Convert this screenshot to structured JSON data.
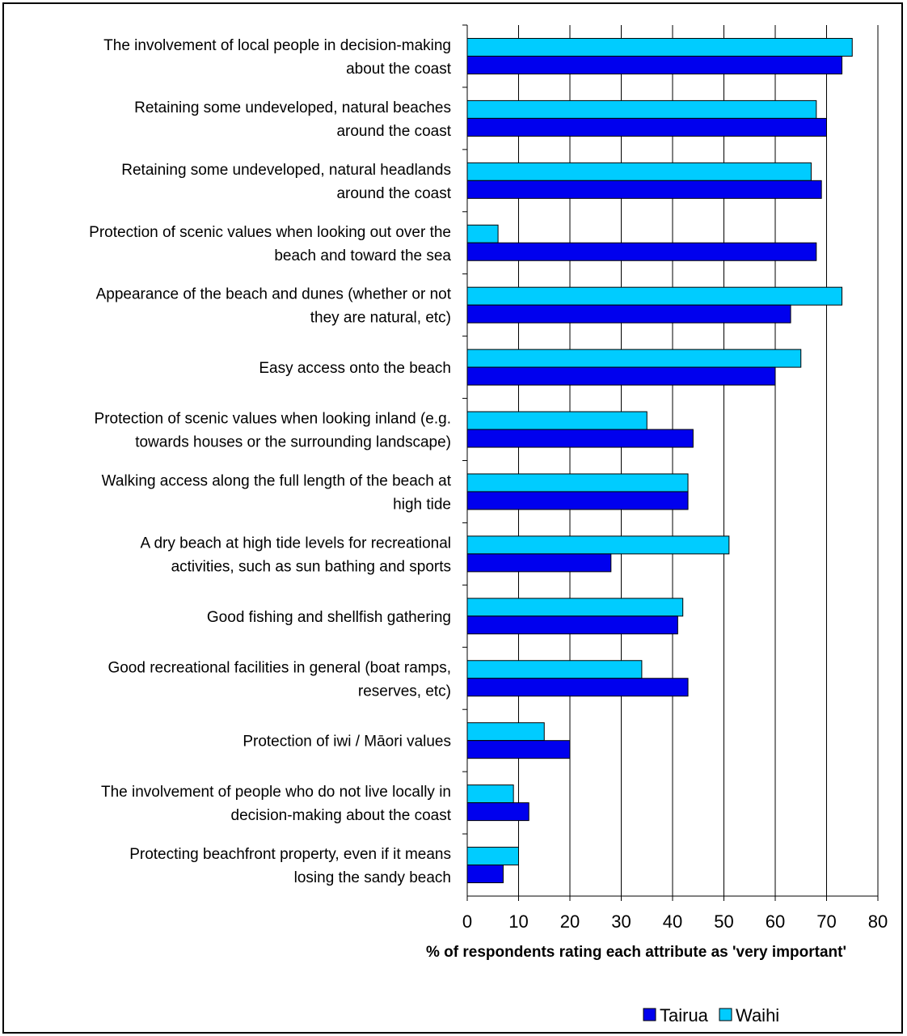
{
  "chart_data": {
    "type": "bar",
    "orientation": "horizontal",
    "title": "",
    "xlabel": "% of respondents rating each attribute as 'very important'",
    "ylabel": "",
    "xlim": [
      0,
      80
    ],
    "xticks": [
      0,
      10,
      20,
      30,
      40,
      50,
      60,
      70,
      80
    ],
    "grid": "vertical",
    "legend_position": "bottom-right",
    "categories": [
      [
        "The involvement of local people in decision-making",
        "about the coast"
      ],
      [
        "Retaining some undeveloped, natural beaches",
        "around the coast"
      ],
      [
        "Retaining some undeveloped, natural headlands",
        "around the coast"
      ],
      [
        "Protection of scenic values when looking out over the",
        "beach and toward the sea"
      ],
      [
        "Appearance of the beach and dunes (whether or not",
        "they are natural, etc)"
      ],
      [
        "Easy access onto the beach"
      ],
      [
        "Protection of scenic values when looking inland (e.g.",
        "towards houses or the surrounding landscape)"
      ],
      [
        "Walking access along the full length of the beach at",
        "high tide"
      ],
      [
        "A dry beach at high tide levels for recreational",
        "activities, such as sun bathing and sports"
      ],
      [
        "Good fishing and shellfish gathering"
      ],
      [
        "Good recreational facilities in general (boat ramps,",
        "reserves, etc)"
      ],
      [
        "Protection of iwi / Māori values"
      ],
      [
        "The involvement of people who do not live locally in",
        "decision-making about the coast"
      ],
      [
        "Protecting beachfront property, even if it means",
        "losing the sandy beach"
      ]
    ],
    "series": [
      {
        "name": "Waihi",
        "color": "#00ccff",
        "values": [
          75,
          68,
          67,
          6,
          73,
          65,
          35,
          43,
          51,
          42,
          34,
          15,
          9,
          10
        ]
      },
      {
        "name": "Tairua",
        "color": "#0000ee",
        "values": [
          73,
          70,
          69,
          68,
          63,
          60,
          44,
          43,
          28,
          41,
          43,
          20,
          12,
          7
        ]
      }
    ],
    "legend_order": [
      "Tairua",
      "Waihi"
    ]
  }
}
